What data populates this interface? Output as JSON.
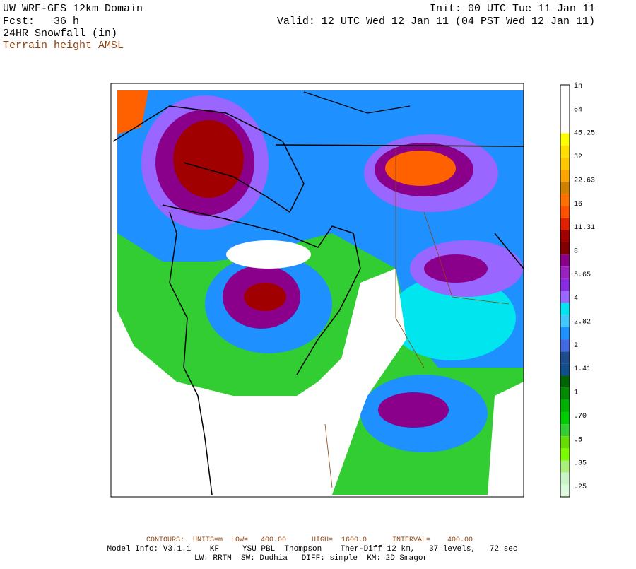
{
  "header": {
    "title": "UW WRF-GFS 12km Domain",
    "forecast": "Fcst:   36 h",
    "field": "24HR Snowfall (in)",
    "terrain": "Terrain height AMSL",
    "init": "Init: 00 UTC Tue 11 Jan 11",
    "valid": "Valid: 12 UTC Wed 12 Jan 11 (04 PST Wed 12 Jan 11)"
  },
  "colorbar": {
    "labels": [
      "in",
      "64",
      "45.25",
      "32",
      "22.63",
      "16",
      "11.31",
      "8",
      "5.65",
      "4",
      "2.82",
      "2",
      "1.41",
      "1",
      ".70",
      ".5",
      ".35",
      ".25"
    ]
  },
  "footer": {
    "contours": "CONTOURS:  UNITS=m  LOW=   400.00      HIGH=  1600.0      INTERVAL=    400.00",
    "model": "Model Info: V3.1.1    KF     YSU PBL  Thompson    Ther-Diff 12 km,   37 levels,   72 sec",
    "physics": "LW: RRTM  SW: Dudhia   DIFF: simple  KM: 2D Smagor"
  }
}
